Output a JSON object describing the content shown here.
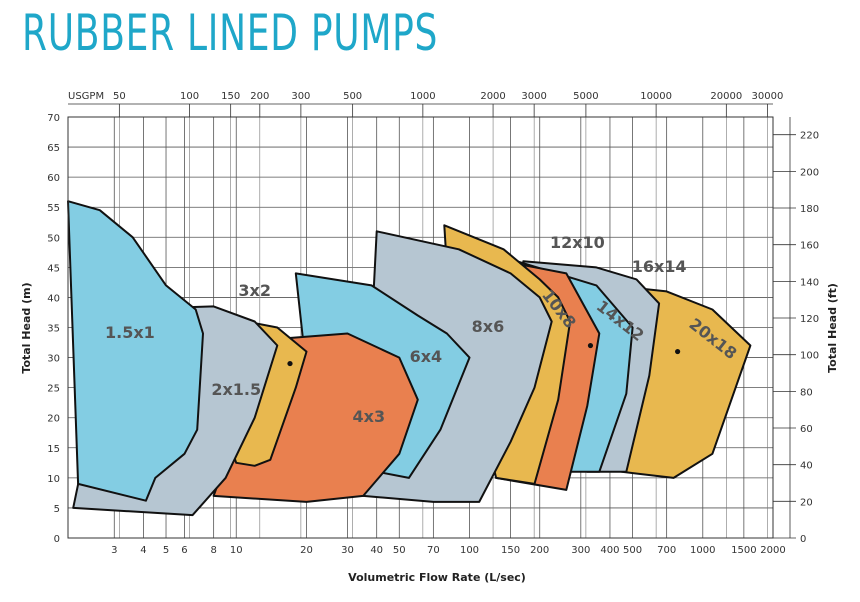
{
  "title": "RUBBER LINED PUMPS",
  "colors": {
    "title": "#1fa7c9",
    "blue": "#83cde3",
    "grey": "#b6c6d2",
    "orange": "#e9804f",
    "yellow": "#e8b84f",
    "outline": "#111111"
  },
  "chart_data": {
    "type": "area",
    "title": "RUBBER LINED PUMPS",
    "xlabel": "Volumetric Flow Rate (L/sec)",
    "ylabel": "Total Head (m)",
    "y2label": "Total Head (ft)",
    "x2label": "USGPM",
    "x_scale": "log",
    "xlim": [
      1.9,
      2000
    ],
    "ylim": [
      0,
      70
    ],
    "grid": true,
    "x_ticks": [
      {
        "value": 3,
        "label": "3"
      },
      {
        "value": 4,
        "label": "4"
      },
      {
        "value": 5,
        "label": "5"
      },
      {
        "value": 6,
        "label": "6"
      },
      {
        "value": 8,
        "label": "8"
      },
      {
        "value": 10,
        "label": "10"
      },
      {
        "value": 20,
        "label": "20"
      },
      {
        "value": 30,
        "label": "30"
      },
      {
        "value": 40,
        "label": "40"
      },
      {
        "value": 50,
        "label": "50"
      },
      {
        "value": 70,
        "label": "70"
      },
      {
        "value": 100,
        "label": "100"
      },
      {
        "value": 150,
        "label": "150"
      },
      {
        "value": 200,
        "label": "200"
      },
      {
        "value": 300,
        "label": "300"
      },
      {
        "value": 400,
        "label": "400"
      },
      {
        "value": 500,
        "label": "500"
      },
      {
        "value": 700,
        "label": "700"
      },
      {
        "value": 1000,
        "label": "1000"
      },
      {
        "value": 1500,
        "label": "1500"
      },
      {
        "value": 2000,
        "label": "2000"
      }
    ],
    "y_ticks": [
      0,
      5,
      10,
      15,
      20,
      25,
      30,
      35,
      40,
      45,
      50,
      55,
      60,
      65,
      70
    ],
    "y2_ticks": [
      0,
      20,
      40,
      60,
      80,
      100,
      120,
      140,
      160,
      180,
      200,
      220
    ],
    "x2_ticks": [
      {
        "value": 50,
        "label": "50"
      },
      {
        "value": 100,
        "label": "100"
      },
      {
        "value": 150,
        "label": "150"
      },
      {
        "value": 200,
        "label": "200"
      },
      {
        "value": 300,
        "label": "300"
      },
      {
        "value": 500,
        "label": "500"
      },
      {
        "value": 1000,
        "label": "1000"
      },
      {
        "value": 2000,
        "label": "2000"
      },
      {
        "value": 3000,
        "label": "3000"
      },
      {
        "value": 5000,
        "label": "5000"
      },
      {
        "value": 10000,
        "label": "10000"
      },
      {
        "value": 20000,
        "label": "20000"
      },
      {
        "value": 30000,
        "label": "30000"
      }
    ],
    "series": [
      {
        "name": "20x18",
        "color": "yellow",
        "label_at": [
          1100,
          33
        ],
        "label_rot": 38,
        "points": [
          [
            200,
            44
          ],
          [
            400,
            42
          ],
          [
            700,
            41
          ],
          [
            1100,
            38
          ],
          [
            1600,
            32
          ],
          [
            1100,
            14
          ],
          [
            750,
            10
          ],
          [
            450,
            11
          ],
          [
            230,
            18
          ],
          [
            200,
            44
          ]
        ]
      },
      {
        "name": "16x14",
        "color": "grey",
        "label_at": [
          650,
          45
        ],
        "label_rot": 0,
        "marker": [
          780,
          31
        ],
        "points": [
          [
            170,
            46
          ],
          [
            350,
            45
          ],
          [
            520,
            43
          ],
          [
            650,
            39
          ],
          [
            590,
            27
          ],
          [
            470,
            11
          ],
          [
            320,
            11
          ],
          [
            200,
            18
          ],
          [
            170,
            46
          ]
        ]
      },
      {
        "name": "14x12",
        "color": "blue",
        "label_at": [
          440,
          36
        ],
        "label_rot": 38,
        "points": [
          [
            160,
            46
          ],
          [
            350,
            42
          ],
          [
            500,
            35
          ],
          [
            470,
            24
          ],
          [
            360,
            11
          ],
          [
            240,
            11
          ],
          [
            180,
            16
          ],
          [
            160,
            46
          ]
        ]
      },
      {
        "name": "12x10",
        "color": "orange",
        "label_at": [
          290,
          49
        ],
        "label_rot": 0,
        "marker": [
          330,
          32
        ],
        "points": [
          [
            140,
            46
          ],
          [
            260,
            44
          ],
          [
            360,
            34
          ],
          [
            320,
            22
          ],
          [
            260,
            8
          ],
          [
            130,
            10
          ],
          [
            120,
            40
          ],
          [
            140,
            46
          ]
        ]
      },
      {
        "name": "10x8",
        "color": "yellow",
        "label_at": [
          240,
          38
        ],
        "label_rot": 52,
        "points": [
          [
            78,
            52
          ],
          [
            140,
            48
          ],
          [
            200,
            43
          ],
          [
            240,
            40
          ],
          [
            270,
            36
          ],
          [
            240,
            23
          ],
          [
            190,
            9
          ],
          [
            130,
            10
          ],
          [
            80,
            45
          ],
          [
            78,
            52
          ]
        ]
      },
      {
        "name": "8x6",
        "color": "grey",
        "label_at": [
          120,
          35
        ],
        "label_rot": 0,
        "points": [
          [
            40,
            51
          ],
          [
            90,
            48
          ],
          [
            150,
            44
          ],
          [
            200,
            40
          ],
          [
            225,
            36
          ],
          [
            190,
            25
          ],
          [
            150,
            16
          ],
          [
            110,
            6
          ],
          [
            70,
            6
          ],
          [
            35,
            7
          ],
          [
            40,
            51
          ]
        ]
      },
      {
        "name": "6x4",
        "color": "blue",
        "label_at": [
          65,
          30
        ],
        "label_rot": 0,
        "points": [
          [
            18,
            44
          ],
          [
            38,
            42
          ],
          [
            60,
            37
          ],
          [
            80,
            34
          ],
          [
            100,
            30
          ],
          [
            75,
            18
          ],
          [
            55,
            10
          ],
          [
            22,
            13
          ],
          [
            18,
            44
          ]
        ]
      },
      {
        "name": "4x3",
        "color": "orange",
        "label_at": [
          37,
          20
        ],
        "label_rot": 0,
        "points": [
          [
            14,
            33
          ],
          [
            30,
            34
          ],
          [
            50,
            30
          ],
          [
            60,
            23
          ],
          [
            50,
            14
          ],
          [
            35,
            7
          ],
          [
            20,
            6
          ],
          [
            8,
            7
          ],
          [
            14,
            33
          ]
        ]
      },
      {
        "name": "3x2",
        "color": "yellow",
        "label_at": [
          12,
          41
        ],
        "label_rot": 0,
        "marker": [
          17,
          29
        ],
        "points": [
          [
            6,
            38
          ],
          [
            15,
            35
          ],
          [
            20,
            31
          ],
          [
            18,
            25
          ],
          [
            14,
            13
          ],
          [
            12,
            12
          ],
          [
            10,
            12.5
          ],
          [
            6,
            38
          ]
        ]
      },
      {
        "name": "2x1.5",
        "color": "grey",
        "label_at": [
          10,
          24.5
        ],
        "label_rot": 0,
        "points": [
          [
            3,
            38
          ],
          [
            8,
            38.5
          ],
          [
            12,
            36
          ],
          [
            15,
            32
          ],
          [
            12,
            20
          ],
          [
            9,
            10
          ],
          [
            6.5,
            3.8
          ],
          [
            2,
            5
          ],
          [
            3,
            38
          ]
        ]
      },
      {
        "name": "1.5x1",
        "color": "blue",
        "label_at": [
          3.5,
          34
        ],
        "label_rot": 0,
        "points": [
          [
            1.9,
            56
          ],
          [
            2.6,
            54.5
          ],
          [
            3.6,
            50
          ],
          [
            5,
            42
          ],
          [
            6.7,
            38
          ],
          [
            7.2,
            34
          ],
          [
            6.8,
            18
          ],
          [
            6,
            14
          ],
          [
            4.5,
            10
          ],
          [
            4.1,
            6.2
          ],
          [
            2.1,
            9
          ],
          [
            1.9,
            56
          ]
        ]
      }
    ]
  }
}
